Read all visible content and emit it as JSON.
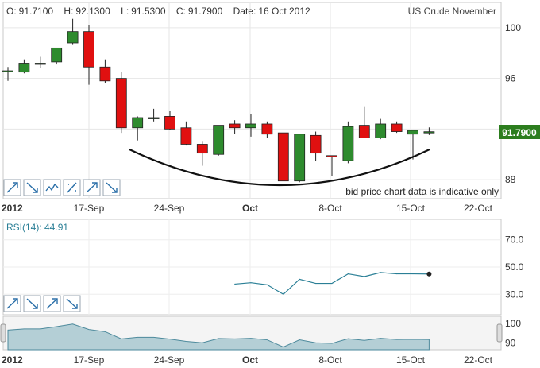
{
  "header": {
    "open_label": "O:",
    "open": "91.7100",
    "high_label": "H:",
    "high": "92.1300",
    "low_label": "L:",
    "low": "91.5300",
    "close_label": "C:",
    "close": "91.7900",
    "date_label": "Date:",
    "date": "16 Oct 2012",
    "instrument": "US Crude November"
  },
  "price_badge": "91.7900",
  "notice": "bid price chart data is indicative only",
  "rsi_label": "RSI(14): 44.91",
  "x_ticks": [
    "2012",
    "17-Sep",
    "24-Sep",
    "Oct",
    "8-Oct",
    "15-Oct",
    "22-Oct"
  ],
  "toolbar_icons": [
    "trend-up-icon",
    "trend-down-icon",
    "stochastic-icon",
    "percent-icon",
    "trend-up-icon",
    "trend-down-icon"
  ],
  "rsi_toolbar_icons": [
    "trend-up-icon",
    "trend-down-icon",
    "trend-up-icon",
    "trend-down-icon"
  ],
  "colors": {
    "up": "#2e8b2e",
    "down": "#e01010",
    "rsi": "#2a7f96",
    "badge": "#2c7d1e",
    "navigator": "#b4cfd6"
  },
  "chart_data": [
    {
      "type": "candlestick",
      "ylim": [
        86.5,
        102
      ],
      "yticks": [
        "100",
        "96",
        "92",
        "88"
      ],
      "yticks_values": [
        100,
        96,
        92,
        88
      ],
      "candles": [
        {
          "o": 96.6,
          "h": 96.9,
          "l": 95.8,
          "c": 96.6
        },
        {
          "o": 96.5,
          "h": 97.5,
          "l": 96.4,
          "c": 97.2
        },
        {
          "o": 97.2,
          "h": 97.7,
          "l": 96.8,
          "c": 97.2
        },
        {
          "o": 97.3,
          "h": 98.4,
          "l": 97.1,
          "c": 98.4
        },
        {
          "o": 98.8,
          "h": 100.7,
          "l": 98.7,
          "c": 99.7
        },
        {
          "o": 99.7,
          "h": 100.2,
          "l": 95.5,
          "c": 96.9
        },
        {
          "o": 96.9,
          "h": 97.5,
          "l": 95.6,
          "c": 95.8
        },
        {
          "o": 96.0,
          "h": 96.5,
          "l": 91.7,
          "c": 92.1
        },
        {
          "o": 92.1,
          "h": 93.0,
          "l": 91.1,
          "c": 92.9
        },
        {
          "o": 92.9,
          "h": 93.6,
          "l": 92.6,
          "c": 92.9
        },
        {
          "o": 93.0,
          "h": 93.4,
          "l": 91.9,
          "c": 92.0
        },
        {
          "o": 92.1,
          "h": 92.6,
          "l": 90.7,
          "c": 90.8
        },
        {
          "o": 90.8,
          "h": 91.0,
          "l": 89.1,
          "c": 90.1
        },
        {
          "o": 90.0,
          "h": 92.3,
          "l": 89.9,
          "c": 92.3
        },
        {
          "o": 92.4,
          "h": 92.7,
          "l": 91.6,
          "c": 92.1
        },
        {
          "o": 92.1,
          "h": 93.2,
          "l": 91.4,
          "c": 92.4
        },
        {
          "o": 92.4,
          "h": 92.6,
          "l": 91.3,
          "c": 91.6
        },
        {
          "o": 91.7,
          "h": 91.7,
          "l": 87.9,
          "c": 87.9
        },
        {
          "o": 87.9,
          "h": 91.6,
          "l": 87.8,
          "c": 91.6
        },
        {
          "o": 91.5,
          "h": 91.8,
          "l": 89.5,
          "c": 90.1
        },
        {
          "o": 89.9,
          "h": 89.9,
          "l": 88.3,
          "c": 89.8
        },
        {
          "o": 89.5,
          "h": 92.6,
          "l": 89.3,
          "c": 92.2
        },
        {
          "o": 92.3,
          "h": 93.8,
          "l": 91.3,
          "c": 91.3
        },
        {
          "o": 91.3,
          "h": 92.8,
          "l": 91.2,
          "c": 92.4
        },
        {
          "o": 92.4,
          "h": 92.6,
          "l": 91.7,
          "c": 91.8
        },
        {
          "o": 91.6,
          "h": 91.9,
          "l": 89.6,
          "c": 91.9
        },
        {
          "o": 91.71,
          "h": 92.13,
          "l": 91.53,
          "c": 91.79
        }
      ]
    },
    {
      "type": "line",
      "ylim": [
        15,
        85
      ],
      "yticks": [
        "70.0",
        "50.0",
        "30.0"
      ],
      "yticks_values": [
        70,
        50,
        30
      ],
      "values": [
        null,
        null,
        null,
        null,
        null,
        null,
        null,
        null,
        null,
        null,
        null,
        null,
        null,
        null,
        37.5,
        38.5,
        37,
        30,
        41,
        38,
        38,
        45,
        43,
        46,
        45,
        45,
        44.91
      ]
    },
    {
      "type": "area",
      "ylim": [
        86.5,
        102
      ],
      "yticks": [
        "100",
        "90"
      ],
      "yticks_values": [
        100,
        90
      ],
      "values": [
        96.6,
        97.2,
        97.2,
        98.4,
        99.7,
        96.9,
        95.8,
        92.1,
        92.9,
        92.9,
        92.0,
        90.8,
        90.1,
        92.3,
        92.1,
        92.4,
        91.6,
        87.9,
        91.6,
        90.1,
        89.8,
        92.2,
        91.3,
        92.4,
        91.8,
        91.9,
        91.79
      ]
    }
  ]
}
